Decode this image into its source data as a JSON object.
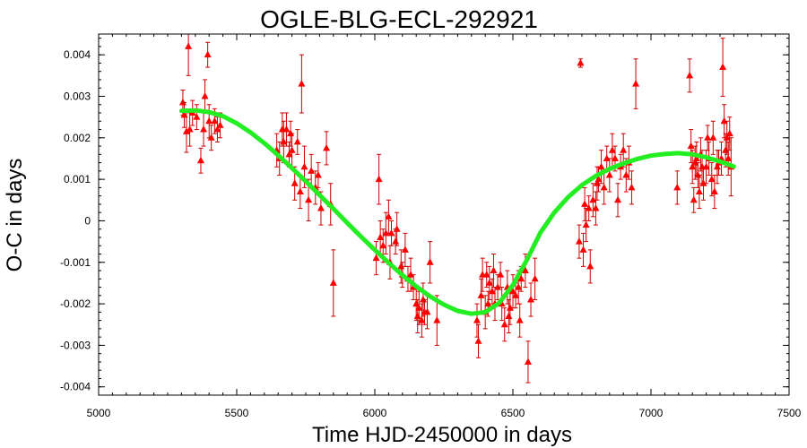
{
  "chart_data": {
    "type": "scatter",
    "title": "OGLE-BLG-ECL-292921",
    "xlabel": "Time HJD-2450000 in days",
    "ylabel": "O-C in days",
    "xlim": [
      5000,
      7500
    ],
    "ylim": [
      -0.0042,
      0.0045
    ],
    "xticks": [
      5000,
      5500,
      6000,
      6500,
      7000,
      7500
    ],
    "xtick_labels": [
      "5000",
      "5500",
      "6000",
      "6500",
      "7000",
      "7500"
    ],
    "yticks": [
      0.004,
      0.003,
      0.002,
      0.001,
      0,
      -0.001,
      -0.002,
      -0.003,
      -0.004
    ],
    "ytick_labels": [
      "0.004",
      "0.003",
      "0.002",
      "0.001",
      "0",
      "-0.001",
      "-0.002",
      "-0.003",
      "-0.004"
    ],
    "grid": false,
    "colors": {
      "points": "#ff0000",
      "errorbars": "#cc0000",
      "fit": "#22ee22"
    },
    "series": [
      {
        "kind": "points-with-errorbars",
        "marker": "triangle",
        "points": [
          {
            "x": 5305,
            "y": 0.00285,
            "err": 0.0003
          },
          {
            "x": 5310,
            "y": 0.00255,
            "err": 0.0003
          },
          {
            "x": 5318,
            "y": 0.00215,
            "err": 0.0005
          },
          {
            "x": 5325,
            "y": 0.0042,
            "err": 0.0007
          },
          {
            "x": 5330,
            "y": 0.0022,
            "err": 0.0004
          },
          {
            "x": 5340,
            "y": 0.0026,
            "err": 0.0003
          },
          {
            "x": 5355,
            "y": 0.0025,
            "err": 0.0003
          },
          {
            "x": 5370,
            "y": 0.00145,
            "err": 0.0003
          },
          {
            "x": 5380,
            "y": 0.0022,
            "err": 0.0004
          },
          {
            "x": 5385,
            "y": 0.003,
            "err": 0.0004
          },
          {
            "x": 5395,
            "y": 0.004,
            "err": 0.0003
          },
          {
            "x": 5400,
            "y": 0.0024,
            "err": 0.0004
          },
          {
            "x": 5408,
            "y": 0.002,
            "err": 0.0003
          },
          {
            "x": 5420,
            "y": 0.0024,
            "err": 0.0003
          },
          {
            "x": 5430,
            "y": 0.0022,
            "err": 0.0003
          },
          {
            "x": 5440,
            "y": 0.0023,
            "err": 0.0003
          },
          {
            "x": 5645,
            "y": 0.0017,
            "err": 0.0004
          },
          {
            "x": 5655,
            "y": 0.0015,
            "err": 0.0004
          },
          {
            "x": 5665,
            "y": 0.0022,
            "err": 0.0004
          },
          {
            "x": 5670,
            "y": 0.0019,
            "err": 0.0005
          },
          {
            "x": 5680,
            "y": 0.0022,
            "err": 0.0004
          },
          {
            "x": 5690,
            "y": 0.0016,
            "err": 0.0003
          },
          {
            "x": 5695,
            "y": 0.0021,
            "err": 0.0003
          },
          {
            "x": 5700,
            "y": 0.0017,
            "err": 0.0004
          },
          {
            "x": 5710,
            "y": 0.0009,
            "err": 0.0004
          },
          {
            "x": 5720,
            "y": 0.0019,
            "err": 0.0003
          },
          {
            "x": 5730,
            "y": 0.0007,
            "err": 0.0004
          },
          {
            "x": 5735,
            "y": 0.0033,
            "err": 0.0007
          },
          {
            "x": 5745,
            "y": 0.0013,
            "err": 0.0005
          },
          {
            "x": 5760,
            "y": 0.0005,
            "err": 0.0005
          },
          {
            "x": 5770,
            "y": 0.0012,
            "err": 0.0004
          },
          {
            "x": 5785,
            "y": 0.0008,
            "err": 0.0004
          },
          {
            "x": 5795,
            "y": 0.0011,
            "err": 0.0003
          },
          {
            "x": 5805,
            "y": 0.0003,
            "err": 0.0004
          },
          {
            "x": 5825,
            "y": 0.00175,
            "err": 0.0004
          },
          {
            "x": 5840,
            "y": 0.0004,
            "err": 0.0005
          },
          {
            "x": 5850,
            "y": -0.0015,
            "err": 0.0008
          },
          {
            "x": 6005,
            "y": -0.0009,
            "err": 0.0004
          },
          {
            "x": 6015,
            "y": 0.001,
            "err": 0.0006
          },
          {
            "x": 6020,
            "y": -0.0004,
            "err": 0.0004
          },
          {
            "x": 6030,
            "y": -0.0006,
            "err": 0.0004
          },
          {
            "x": 6040,
            "y": -0.0003,
            "err": 0.0005
          },
          {
            "x": 6050,
            "y": 0.0001,
            "err": 0.0004
          },
          {
            "x": 6055,
            "y": -0.001,
            "err": 0.0004
          },
          {
            "x": 6060,
            "y": -0.0003,
            "err": 0.0003
          },
          {
            "x": 6075,
            "y": -0.0005,
            "err": 0.0003
          },
          {
            "x": 6080,
            "y": -0.0002,
            "err": 0.0004
          },
          {
            "x": 6095,
            "y": -0.0011,
            "err": 0.0004
          },
          {
            "x": 6100,
            "y": -0.0013,
            "err": 0.0003
          },
          {
            "x": 6110,
            "y": -0.0007,
            "err": 0.0004
          },
          {
            "x": 6120,
            "y": -0.0014,
            "err": 0.0003
          },
          {
            "x": 6130,
            "y": -0.0013,
            "err": 0.0004
          },
          {
            "x": 6140,
            "y": -0.0016,
            "err": 0.0003
          },
          {
            "x": 6150,
            "y": -0.002,
            "err": 0.0004
          },
          {
            "x": 6155,
            "y": -0.0023,
            "err": 0.0004
          },
          {
            "x": 6160,
            "y": -0.0021,
            "err": 0.0004
          },
          {
            "x": 6170,
            "y": -0.0024,
            "err": 0.0004
          },
          {
            "x": 6175,
            "y": -0.0019,
            "err": 0.0004
          },
          {
            "x": 6180,
            "y": -0.0022,
            "err": 0.0003
          },
          {
            "x": 6190,
            "y": -0.0022,
            "err": 0.0004
          },
          {
            "x": 6200,
            "y": -0.001,
            "err": 0.0005
          },
          {
            "x": 6225,
            "y": -0.0024,
            "err": 0.0006
          },
          {
            "x": 6370,
            "y": -0.0024,
            "err": 0.0004
          },
          {
            "x": 6375,
            "y": -0.0029,
            "err": 0.0004
          },
          {
            "x": 6385,
            "y": -0.0018,
            "err": 0.0004
          },
          {
            "x": 6390,
            "y": -0.0013,
            "err": 0.0004
          },
          {
            "x": 6400,
            "y": -0.0022,
            "err": 0.0004
          },
          {
            "x": 6405,
            "y": -0.0013,
            "err": 0.0003
          },
          {
            "x": 6410,
            "y": -0.002,
            "err": 0.0003
          },
          {
            "x": 6415,
            "y": -0.0015,
            "err": 0.0004
          },
          {
            "x": 6425,
            "y": -0.0017,
            "err": 0.0003
          },
          {
            "x": 6430,
            "y": -0.0012,
            "err": 0.0004
          },
          {
            "x": 6435,
            "y": -0.002,
            "err": 0.0004
          },
          {
            "x": 6445,
            "y": -0.0016,
            "err": 0.0003
          },
          {
            "x": 6455,
            "y": -0.0013,
            "err": 0.0003
          },
          {
            "x": 6460,
            "y": -0.002,
            "err": 0.0004
          },
          {
            "x": 6470,
            "y": -0.0025,
            "err": 0.0004
          },
          {
            "x": 6480,
            "y": -0.0016,
            "err": 0.0004
          },
          {
            "x": 6485,
            "y": -0.0023,
            "err": 0.0004
          },
          {
            "x": 6490,
            "y": -0.0021,
            "err": 0.0004
          },
          {
            "x": 6500,
            "y": -0.0017,
            "err": 0.0004
          },
          {
            "x": 6510,
            "y": -0.0018,
            "err": 0.0003
          },
          {
            "x": 6520,
            "y": -0.0016,
            "err": 0.0004
          },
          {
            "x": 6525,
            "y": -0.0024,
            "err": 0.0004
          },
          {
            "x": 6530,
            "y": -0.0014,
            "err": 0.0003
          },
          {
            "x": 6545,
            "y": -0.0012,
            "err": 0.0004
          },
          {
            "x": 6555,
            "y": -0.0034,
            "err": 0.0005
          },
          {
            "x": 6565,
            "y": -0.0019,
            "err": 0.0004
          },
          {
            "x": 6580,
            "y": -0.0014,
            "err": 0.0005
          },
          {
            "x": 6745,
            "y": 0.0038,
            "err": 0.0001
          },
          {
            "x": 6740,
            "y": -0.0005,
            "err": 0.0004
          },
          {
            "x": 6755,
            "y": -0.0007,
            "err": 0.0004
          },
          {
            "x": 6760,
            "y": 0.0004,
            "err": 0.0004
          },
          {
            "x": 6765,
            "y": -0.0001,
            "err": 0.0004
          },
          {
            "x": 6775,
            "y": 0.0003,
            "err": 0.0003
          },
          {
            "x": 6780,
            "y": -0.0011,
            "err": 0.0004
          },
          {
            "x": 6790,
            "y": 0.0005,
            "err": 0.0004
          },
          {
            "x": 6800,
            "y": 0.0003,
            "err": 0.0004
          },
          {
            "x": 6805,
            "y": 0.0009,
            "err": 0.0004
          },
          {
            "x": 6810,
            "y": 0.001,
            "err": 0.0003
          },
          {
            "x": 6820,
            "y": 0.0013,
            "err": 0.0004
          },
          {
            "x": 6830,
            "y": 0.0008,
            "err": 0.0004
          },
          {
            "x": 6840,
            "y": 0.0015,
            "err": 0.0003
          },
          {
            "x": 6850,
            "y": 0.0011,
            "err": 0.0004
          },
          {
            "x": 6860,
            "y": 0.0017,
            "err": 0.0004
          },
          {
            "x": 6870,
            "y": 0.0015,
            "err": 0.0003
          },
          {
            "x": 6880,
            "y": 0.0005,
            "err": 0.0004
          },
          {
            "x": 6890,
            "y": 0.0013,
            "err": 0.0003
          },
          {
            "x": 6900,
            "y": 0.0017,
            "err": 0.0004
          },
          {
            "x": 6910,
            "y": 0.0011,
            "err": 0.0004
          },
          {
            "x": 6920,
            "y": 0.0014,
            "err": 0.0004
          },
          {
            "x": 6930,
            "y": 0.0008,
            "err": 0.0004
          },
          {
            "x": 6945,
            "y": 0.0033,
            "err": 0.0006
          },
          {
            "x": 7095,
            "y": 0.0008,
            "err": 0.0004
          },
          {
            "x": 7140,
            "y": 0.0035,
            "err": 0.0004
          },
          {
            "x": 7145,
            "y": 0.0018,
            "err": 0.0004
          },
          {
            "x": 7150,
            "y": 0.0013,
            "err": 0.0004
          },
          {
            "x": 7155,
            "y": 0.0005,
            "err": 0.0003
          },
          {
            "x": 7160,
            "y": 0.0014,
            "err": 0.0004
          },
          {
            "x": 7165,
            "y": 0.0015,
            "err": 0.0004
          },
          {
            "x": 7170,
            "y": 0.0011,
            "err": 0.0003
          },
          {
            "x": 7175,
            "y": 0.0007,
            "err": 0.0004
          },
          {
            "x": 7180,
            "y": 0.0016,
            "err": 0.0004
          },
          {
            "x": 7185,
            "y": 0.0013,
            "err": 0.0004
          },
          {
            "x": 7190,
            "y": 0.0009,
            "err": 0.0004
          },
          {
            "x": 7200,
            "y": 0.0013,
            "err": 0.0004
          },
          {
            "x": 7205,
            "y": 0.002,
            "err": 0.0003
          },
          {
            "x": 7210,
            "y": 0.0015,
            "err": 0.0004
          },
          {
            "x": 7220,
            "y": 0.001,
            "err": 0.0004
          },
          {
            "x": 7225,
            "y": 0.002,
            "err": 0.0004
          },
          {
            "x": 7230,
            "y": 0.0007,
            "err": 0.0004
          },
          {
            "x": 7240,
            "y": 0.0013,
            "err": 0.0004
          },
          {
            "x": 7245,
            "y": 0.0014,
            "err": 0.0003
          },
          {
            "x": 7255,
            "y": 0.0015,
            "err": 0.0004
          },
          {
            "x": 7260,
            "y": 0.0037,
            "err": 0.0007
          },
          {
            "x": 7265,
            "y": 0.0024,
            "err": 0.0004
          },
          {
            "x": 7270,
            "y": 0.0017,
            "err": 0.0004
          },
          {
            "x": 7275,
            "y": 0.002,
            "err": 0.0004
          },
          {
            "x": 7280,
            "y": 0.0015,
            "err": 0.0004
          },
          {
            "x": 7285,
            "y": 0.0021,
            "err": 0.0004
          },
          {
            "x": 7290,
            "y": 0.0013,
            "err": 0.0007
          }
        ]
      },
      {
        "kind": "fit-curve",
        "x": [
          5300,
          5350,
          5400,
          5450,
          5500,
          5550,
          5600,
          5650,
          5700,
          5750,
          5800,
          5850,
          5900,
          5950,
          6000,
          6050,
          6100,
          6150,
          6200,
          6250,
          6300,
          6350,
          6400,
          6450,
          6500,
          6550,
          6600,
          6650,
          6700,
          6750,
          6800,
          6850,
          6900,
          6950,
          7000,
          7050,
          7100,
          7150,
          7200,
          7250,
          7300
        ],
        "y": [
          0.00265,
          0.00266,
          0.00262,
          0.00252,
          0.00235,
          0.00213,
          0.00187,
          0.00158,
          0.00127,
          0.00095,
          0.00062,
          0.00029,
          -5e-05,
          -0.00038,
          -0.0007,
          -0.00101,
          -0.00131,
          -0.00158,
          -0.00182,
          -0.00202,
          -0.00217,
          -0.00224,
          -0.0022,
          -0.00198,
          -0.00155,
          -0.00095,
          -0.00028,
          0.0002,
          0.00057,
          0.00086,
          0.00108,
          0.00125,
          0.00138,
          0.00149,
          0.00157,
          0.00161,
          0.00163,
          0.0016,
          0.00153,
          0.00143,
          0.00131
        ]
      }
    ]
  }
}
